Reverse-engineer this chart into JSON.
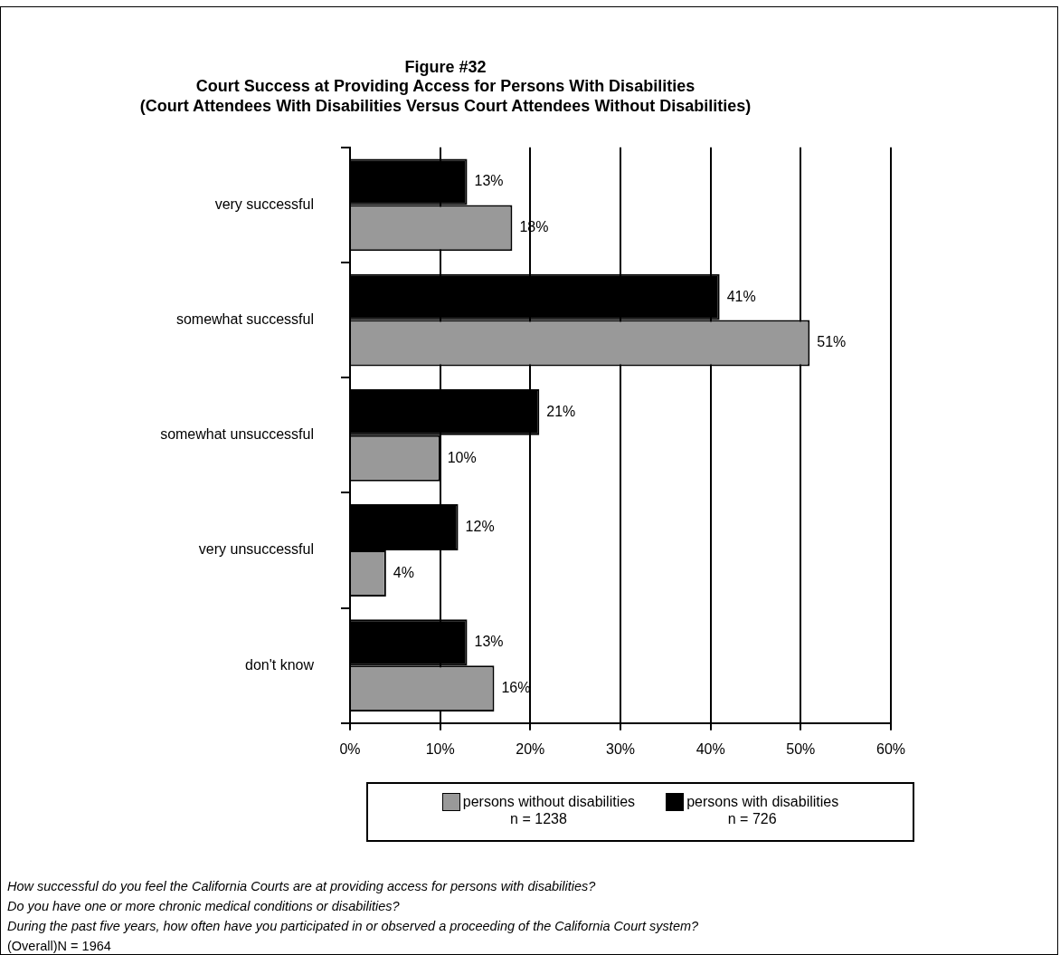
{
  "chart_data": {
    "type": "bar",
    "orientation": "horizontal",
    "title": [
      "Figure #32",
      "Court Success at Providing Access for Persons With Disabilities",
      "(Court Attendees With Disabilities Versus Court Attendees Without Disabilities)"
    ],
    "categories": [
      "very successful",
      "somewhat successful",
      "somewhat unsuccessful",
      "very unsuccessful",
      "don't know"
    ],
    "series": [
      {
        "name": "persons with disabilities",
        "color": "#000000",
        "values": [
          13,
          41,
          21,
          12,
          13
        ],
        "value_labels": [
          "13%",
          "41%",
          "21%",
          "12%",
          "13%"
        ]
      },
      {
        "name": "persons without disabilities",
        "color": "#999999",
        "values": [
          18,
          51,
          10,
          4,
          16
        ],
        "value_labels": [
          "18%",
          "51%",
          "10%",
          "4%",
          "16%"
        ]
      }
    ],
    "xlim": [
      0,
      60
    ],
    "xticks": [
      {
        "value": 0,
        "label": "0%"
      },
      {
        "value": 10,
        "label": "10%"
      },
      {
        "value": 20,
        "label": "20%"
      },
      {
        "value": 30,
        "label": "30%"
      },
      {
        "value": 40,
        "label": "40%"
      },
      {
        "value": 50,
        "label": "50%"
      },
      {
        "value": 60,
        "label": "60%"
      }
    ],
    "grid": "x",
    "legend": "bottom",
    "annotations": [
      "n = 726",
      "n = 1238",
      "How successful do you feel the California Courts are at providing access for persons with disabilities?",
      "Do you have one or more chronic medical conditions or disabilities?",
      "During the past five years, how often have you participated in or observed a proceeding of the California Court system?",
      "(Overall)N = 1964"
    ]
  }
}
